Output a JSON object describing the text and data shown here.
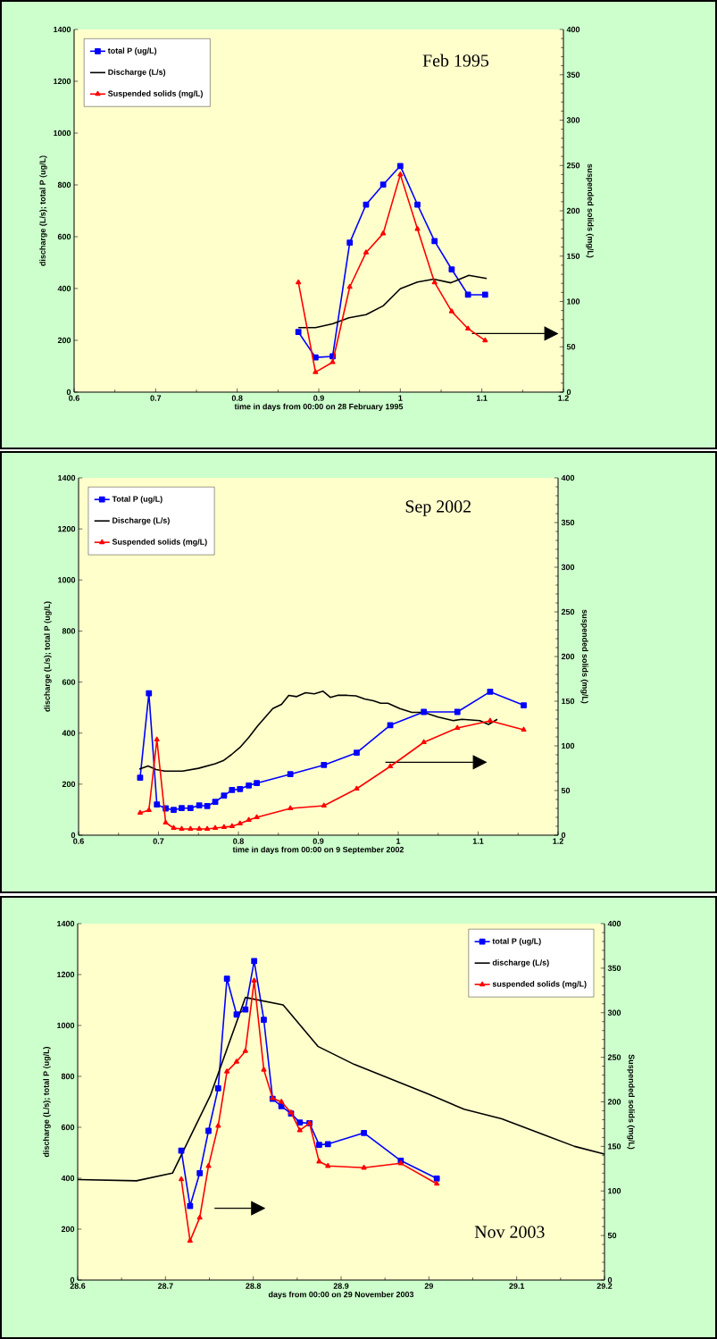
{
  "chart_data": [
    {
      "type": "line",
      "title": "Feb 1995",
      "xlabel": "time in days from 00:00 on 28 February 1995",
      "ylabel": "discharge (L/s);  total P (ug/L)",
      "y2label": "suspended solids (mg/L)",
      "xlim": [
        0.6,
        1.2
      ],
      "xticks": [
        0.6,
        0.7,
        0.8,
        0.9,
        1,
        1.1,
        1.2
      ],
      "ylim": [
        0,
        1400
      ],
      "yticks": [
        0,
        200,
        400,
        600,
        800,
        1000,
        1200,
        1400
      ],
      "y2lim": [
        0,
        400
      ],
      "y2ticks": [
        0,
        50,
        100,
        150,
        200,
        250,
        300,
        350,
        400
      ],
      "legend": "top left",
      "series": [
        {
          "name": "total P (ug/L)",
          "color": "#0000ff",
          "marker": "square",
          "x": [
            0.875,
            0.896,
            0.917,
            0.938,
            0.958,
            0.979,
            1.0,
            1.021,
            1.042,
            1.063,
            1.083,
            1.104
          ],
          "values": [
            232,
            134,
            138,
            577,
            724,
            801,
            873,
            724,
            583,
            474,
            376,
            376
          ]
        },
        {
          "name": "Discharge (L/s)",
          "color": "#000000",
          "marker": "none",
          "x": [
            0.875,
            0.896,
            0.917,
            0.937,
            0.958,
            0.979,
            1.0,
            1.021,
            1.041,
            1.062,
            1.084,
            1.106
          ],
          "values": [
            249,
            249,
            264,
            287,
            299,
            333,
            399,
            425,
            436,
            422,
            451,
            439
          ]
        },
        {
          "name": "Suspended solids (mg/L)",
          "color": "#ff0000",
          "marker": "triangle",
          "axis": "y2",
          "x": [
            0.875,
            0.896,
            0.917,
            0.938,
            0.958,
            0.979,
            1.0,
            1.021,
            1.042,
            1.063,
            1.083,
            1.104
          ],
          "values": [
            121,
            22,
            33,
            116,
            154,
            175,
            240,
            180,
            121,
            89,
            70,
            57
          ]
        }
      ]
    },
    {
      "type": "line",
      "title": "Sep 2002",
      "xlabel": "time in days from 00:00 on 9 September 2002",
      "ylabel": "discharge (L/s);  total P (ug/L)",
      "y2label": "suspended solids (mg/L)",
      "xlim": [
        0.6,
        1.2
      ],
      "xticks": [
        0.6,
        0.7,
        0.8,
        0.9,
        1,
        1.1,
        1.2
      ],
      "ylim": [
        0,
        1400
      ],
      "yticks": [
        0,
        200,
        400,
        600,
        800,
        1000,
        1200,
        1400
      ],
      "y2lim": [
        0,
        400
      ],
      "y2ticks": [
        0,
        50,
        100,
        150,
        200,
        250,
        300,
        350,
        400
      ],
      "legend": "top left",
      "series": [
        {
          "name": "Total P (ug/L)",
          "color": "#0000ff",
          "marker": "square",
          "x": [
            0.677,
            0.688,
            0.698,
            0.709,
            0.719,
            0.729,
            0.74,
            0.751,
            0.761,
            0.771,
            0.782,
            0.792,
            0.802,
            0.813,
            0.823,
            0.865,
            0.907,
            0.948,
            0.99,
            1.032,
            1.074,
            1.115,
            1.157
          ],
          "values": [
            225,
            556,
            120,
            105,
            99,
            106,
            106,
            117,
            114,
            131,
            155,
            177,
            181,
            195,
            204,
            239,
            275,
            323,
            431,
            483,
            483,
            562,
            509
          ]
        },
        {
          "name": "Discharge (L/s)",
          "color": "#000000",
          "marker": "none",
          "x": [
            0.676,
            0.687,
            0.697,
            0.708,
            0.73,
            0.75,
            0.771,
            0.781,
            0.791,
            0.802,
            0.813,
            0.824,
            0.843,
            0.854,
            0.863,
            0.873,
            0.884,
            0.895,
            0.906,
            0.915,
            0.924,
            0.936,
            0.947,
            0.958,
            0.969,
            0.978,
            0.987,
            1.002,
            1.017,
            1.032,
            1.05,
            1.069,
            1.08,
            1.102,
            1.113,
            1.124
          ],
          "values": [
            259,
            271,
            257,
            251,
            251,
            262,
            280,
            292,
            315,
            344,
            383,
            428,
            496,
            513,
            548,
            543,
            558,
            554,
            564,
            540,
            548,
            548,
            546,
            534,
            527,
            517,
            517,
            496,
            481,
            481,
            463,
            449,
            454,
            449,
            434,
            454
          ]
        },
        {
          "name": "Suspended solids (mg/L)",
          "color": "#ff0000",
          "marker": "triangle",
          "axis": "y2",
          "x": [
            0.677,
            0.688,
            0.698,
            0.709,
            0.719,
            0.729,
            0.74,
            0.751,
            0.761,
            0.771,
            0.782,
            0.792,
            0.802,
            0.813,
            0.823,
            0.865,
            0.907,
            0.948,
            0.99,
            1.032,
            1.074,
            1.115,
            1.157
          ],
          "values": [
            25,
            28,
            107,
            14,
            8,
            7,
            7,
            7,
            7,
            8,
            9,
            10,
            13,
            17,
            20,
            30,
            33,
            52,
            77,
            104,
            120,
            128,
            118
          ]
        }
      ]
    },
    {
      "type": "line",
      "title": "Nov 2003",
      "xlabel": "days from 00:00 on 29 November 2003",
      "ylabel": "discharge (L/s); total P (ug/L)",
      "y2label": "Suspended solids (mg/L)",
      "xlim": [
        28.6,
        29.2
      ],
      "xticks": [
        28.6,
        28.7,
        28.8,
        28.9,
        29,
        29.1,
        29.2
      ],
      "ylim": [
        0,
        1400
      ],
      "yticks": [
        0,
        200,
        400,
        600,
        800,
        1000,
        1200,
        1400
      ],
      "y2lim": [
        0,
        400
      ],
      "y2ticks": [
        0,
        50,
        100,
        150,
        200,
        250,
        300,
        350,
        400
      ],
      "legend": "top right",
      "series": [
        {
          "name": "total P (ug/L)",
          "color": "#0000ff",
          "marker": "square",
          "x": [
            28.718,
            28.728,
            28.739,
            28.749,
            28.76,
            28.77,
            28.781,
            28.791,
            28.801,
            28.812,
            28.822,
            28.832,
            28.843,
            28.853,
            28.864,
            28.875,
            28.885,
            28.926,
            28.968,
            29.009
          ],
          "values": [
            508,
            291,
            420,
            586,
            753,
            1184,
            1043,
            1063,
            1253,
            1022,
            712,
            683,
            654,
            619,
            616,
            531,
            534,
            578,
            469,
            399
          ]
        },
        {
          "name": "discharge (L/s)",
          "color": "#000000",
          "marker": "none",
          "x": [
            28.6,
            28.667,
            28.708,
            28.751,
            28.791,
            28.834,
            28.874,
            28.915,
            29.0,
            29.04,
            29.083,
            29.166,
            29.2
          ],
          "values": [
            395,
            390,
            420,
            724,
            1110,
            1081,
            917,
            847,
            730,
            671,
            633,
            525,
            495
          ]
        },
        {
          "name": "suspended solids (mg/L)",
          "color": "#ff0000",
          "marker": "triangle",
          "axis": "y2",
          "x": [
            28.718,
            28.728,
            28.739,
            28.749,
            28.76,
            28.77,
            28.781,
            28.791,
            28.801,
            28.812,
            28.822,
            28.832,
            28.843,
            28.853,
            28.864,
            28.875,
            28.885,
            28.926,
            28.968,
            29.009
          ],
          "values": [
            113,
            44,
            70,
            128,
            173,
            234,
            245,
            257,
            336,
            236,
            204,
            200,
            188,
            168,
            176,
            133,
            128,
            126,
            131,
            108
          ]
        }
      ]
    }
  ]
}
